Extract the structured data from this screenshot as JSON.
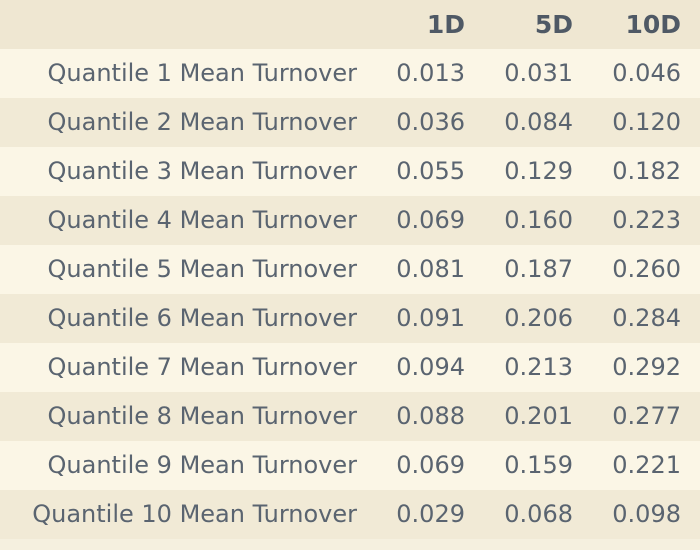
{
  "table": {
    "columns": [
      "1D",
      "5D",
      "10D"
    ],
    "rows": [
      {
        "label": "Quantile 1 Mean Turnover",
        "values": [
          "0.013",
          "0.031",
          "0.046"
        ]
      },
      {
        "label": "Quantile 2 Mean Turnover",
        "values": [
          "0.036",
          "0.084",
          "0.120"
        ]
      },
      {
        "label": "Quantile 3 Mean Turnover",
        "values": [
          "0.055",
          "0.129",
          "0.182"
        ]
      },
      {
        "label": "Quantile 4 Mean Turnover",
        "values": [
          "0.069",
          "0.160",
          "0.223"
        ]
      },
      {
        "label": "Quantile 5 Mean Turnover",
        "values": [
          "0.081",
          "0.187",
          "0.260"
        ]
      },
      {
        "label": "Quantile 6 Mean Turnover",
        "values": [
          "0.091",
          "0.206",
          "0.284"
        ]
      },
      {
        "label": "Quantile 7 Mean Turnover",
        "values": [
          "0.094",
          "0.213",
          "0.292"
        ]
      },
      {
        "label": "Quantile 8 Mean Turnover",
        "values": [
          "0.088",
          "0.201",
          "0.277"
        ]
      },
      {
        "label": "Quantile 9 Mean Turnover",
        "values": [
          "0.069",
          "0.159",
          "0.221"
        ]
      },
      {
        "label": "Quantile 10 Mean Turnover",
        "values": [
          "0.029",
          "0.068",
          "0.098"
        ]
      }
    ]
  },
  "colors": {
    "header_bg": "#efe7d2",
    "row_light": "#fbf6e6",
    "row_dark": "#f1ead6"
  }
}
